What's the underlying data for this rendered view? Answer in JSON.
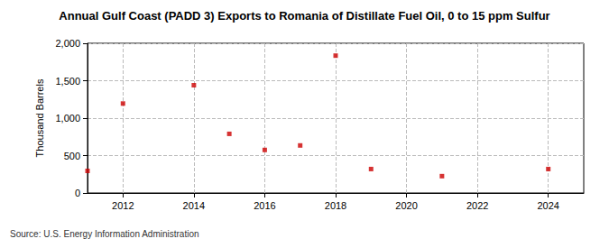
{
  "chart_data": {
    "type": "scatter",
    "title": "Annual Gulf Coast (PADD 3) Exports to Romania of Distillate Fuel Oil, 0 to 15 ppm Sulfur",
    "y_label": "Thousand Barrels",
    "source": "Source: U.S. Energy Information Administration",
    "x": [
      2011,
      2012,
      2014,
      2015,
      2016,
      2017,
      2018,
      2019,
      2021,
      2024
    ],
    "values": [
      295,
      1195,
      1440,
      790,
      575,
      635,
      1835,
      320,
      225,
      320
    ],
    "color": "#cc0000",
    "marker": "square",
    "xlim": [
      2011,
      2025
    ],
    "xticks": [
      2012,
      2014,
      2016,
      2018,
      2020,
      2022,
      2024
    ],
    "ylim": [
      0,
      2000
    ],
    "yticks": [
      0,
      500,
      {
        "value": 1000,
        "label": "1,000"
      },
      {
        "value": 1500,
        "label": "1,500"
      },
      {
        "value": 2000,
        "label": "2,000"
      }
    ],
    "grid": true
  }
}
